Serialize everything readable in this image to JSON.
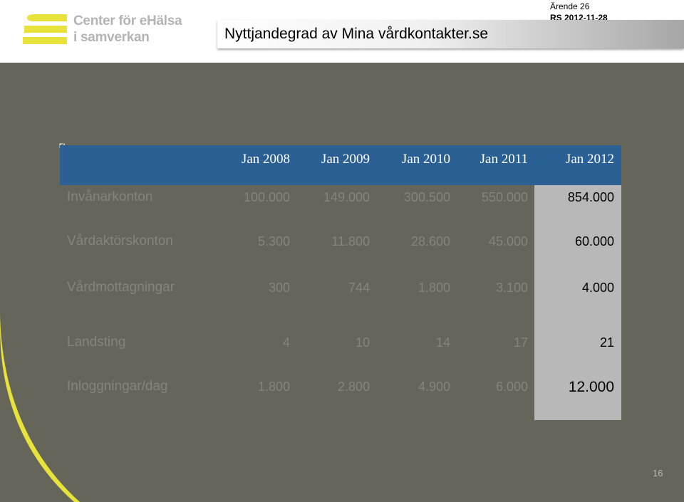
{
  "header": {
    "logo_line1": "Center för eHälsa",
    "logo_line2": "i samverkan",
    "title": "Nyttjandegrad av Mina vårdkontakter.se",
    "ref_line1": "Ärende 26",
    "ref_line2": "RS 2012-11-28",
    "brand_colors": {
      "logo_yellow": "#e8e33a",
      "header_blue": "#2b6094",
      "background": "#666559",
      "highlight": "#b8b8b8"
    }
  },
  "table": {
    "corner_mark": "F!",
    "columns": [
      "Jan 2008",
      "Jan 2009",
      "Jan  2010",
      "Jan 2011",
      "Jan 2012"
    ],
    "rows": [
      {
        "label": "Invånarkonton",
        "values": [
          "100.000",
          "149.000",
          "300.500",
          "550.000",
          "854.000"
        ]
      },
      {
        "label": "Vårdaktörskonton",
        "values": [
          "5.300",
          "11.800",
          "28.600",
          "45.000",
          "60.000"
        ]
      },
      {
        "label": "Vårdmottagningar",
        "values": [
          "300",
          "744",
          "1.800",
          "3.100",
          "4.000"
        ]
      },
      {
        "label": "Landsting",
        "values": [
          "4",
          "10",
          "14",
          "17",
          "21"
        ]
      },
      {
        "label": "Inloggningar/dag",
        "values": [
          "1.800",
          "2.800",
          "4.900",
          "6.000",
          "12.000"
        ]
      }
    ]
  },
  "footer": {
    "page_number": "16"
  }
}
